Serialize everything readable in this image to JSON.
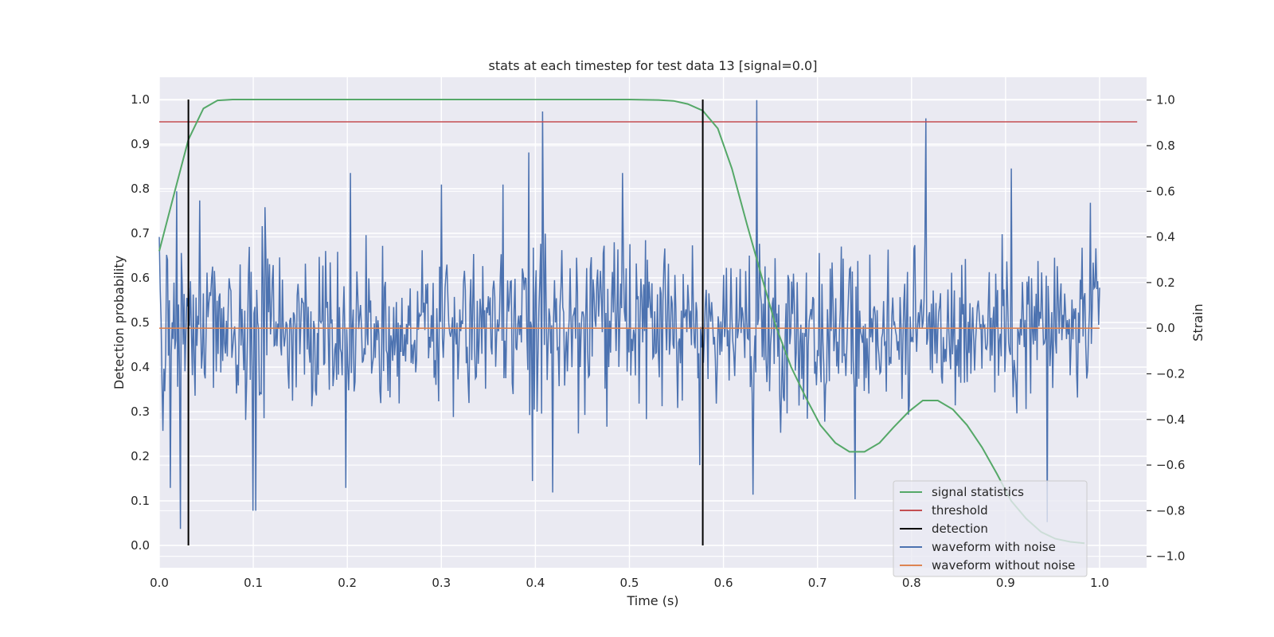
{
  "chart_data": {
    "type": "line",
    "title": "stats at each timestep for test data 13 [signal=0.0]",
    "xlabel": "Time (s)",
    "ylabel": "Detection probability",
    "ylabel_right": "Strain",
    "xlim": [
      0.0,
      1.05
    ],
    "ylim": [
      -0.05,
      1.05
    ],
    "ylim_right": [
      -1.05,
      1.1
    ],
    "x_ticks": [
      0.0,
      0.1,
      0.2,
      0.3,
      0.4,
      0.5,
      0.6,
      0.7,
      0.8,
      0.9,
      1.0
    ],
    "x_tick_labels": [
      "0.0",
      "0.1",
      "0.2",
      "0.3",
      "0.4",
      "0.5",
      "0.6",
      "0.7",
      "0.8",
      "0.9",
      "1.0"
    ],
    "y_ticks": [
      0.0,
      0.1,
      0.2,
      0.3,
      0.4,
      0.5,
      0.6,
      0.7,
      0.8,
      0.9,
      1.0
    ],
    "y_tick_labels": [
      "0.0",
      "0.1",
      "0.2",
      "0.3",
      "0.4",
      "0.5",
      "0.6",
      "0.7",
      "0.8",
      "0.9",
      "1.0"
    ],
    "y_right_ticks": [
      -1.0,
      -0.8,
      -0.6,
      -0.4,
      -0.2,
      0.0,
      0.2,
      0.4,
      0.6,
      0.8,
      1.0
    ],
    "y_right_tick_labels": [
      "−1.0",
      "−0.8",
      "−0.6",
      "−0.4",
      "−0.2",
      "0.0",
      "0.2",
      "0.4",
      "0.6",
      "0.8",
      "1.0"
    ],
    "grid": true,
    "legend_position": "lower-right",
    "series": [
      {
        "name": "signal statistics",
        "axis": "left",
        "color": "#55a868",
        "x": [
          0.0,
          0.016,
          0.031,
          0.047,
          0.062,
          0.078,
          0.094,
          0.2,
          0.3,
          0.4,
          0.5,
          0.531,
          0.547,
          0.562,
          0.578,
          0.594,
          0.609,
          0.625,
          0.641,
          0.656,
          0.672,
          0.688,
          0.703,
          0.719,
          0.734,
          0.75,
          0.766,
          0.781,
          0.797,
          0.812,
          0.828,
          0.844,
          0.859,
          0.875,
          0.891,
          0.906,
          0.922,
          0.938,
          0.953,
          0.969,
          0.984
        ],
        "y": [
          0.66,
          0.79,
          0.91,
          0.98,
          0.998,
          1.0,
          1.0,
          1.0,
          1.0,
          1.0,
          1.0,
          0.999,
          0.997,
          0.99,
          0.975,
          0.935,
          0.845,
          0.72,
          0.6,
          0.49,
          0.4,
          0.33,
          0.27,
          0.23,
          0.21,
          0.21,
          0.23,
          0.265,
          0.3,
          0.325,
          0.325,
          0.305,
          0.27,
          0.22,
          0.16,
          0.1,
          0.06,
          0.03,
          0.015,
          0.008,
          0.005
        ]
      },
      {
        "name": "threshold",
        "axis": "left",
        "color": "#c44e52",
        "x": [
          0.0,
          1.04
        ],
        "y": [
          0.95,
          0.95
        ]
      },
      {
        "name": "detection",
        "axis": "left",
        "color": "#000000",
        "segments": [
          {
            "x": 0.031,
            "y0": 0.0,
            "y1": 1.0
          },
          {
            "x": 0.578,
            "y0": 0.0,
            "y1": 1.0
          }
        ]
      },
      {
        "name": "waveform with noise",
        "axis": "right",
        "color": "#4c72b0",
        "x_start": 0.0,
        "x_end": 1.0,
        "n_points": 1024,
        "spikes": [
          {
            "x": 0.0,
            "y": 0.4
          },
          {
            "x": 0.004,
            "y": -0.45
          },
          {
            "x": 0.009,
            "y": 0.3
          },
          {
            "x": 0.012,
            "y": -0.7
          },
          {
            "x": 0.016,
            "y": 0.2
          },
          {
            "x": 0.019,
            "y": 0.6
          },
          {
            "x": 0.022,
            "y": -0.88
          },
          {
            "x": 0.026,
            "y": 0.15
          },
          {
            "x": 0.043,
            "y": 0.56
          },
          {
            "x": 0.1,
            "y": -0.8
          },
          {
            "x": 0.103,
            "y": -0.8
          },
          {
            "x": 0.112,
            "y": 0.53
          },
          {
            "x": 0.198,
            "y": -0.7
          },
          {
            "x": 0.203,
            "y": 0.68
          },
          {
            "x": 0.3,
            "y": 0.63
          },
          {
            "x": 0.366,
            "y": 0.63
          },
          {
            "x": 0.393,
            "y": 0.77
          },
          {
            "x": 0.397,
            "y": -0.67
          },
          {
            "x": 0.408,
            "y": 0.95
          },
          {
            "x": 0.418,
            "y": -0.72
          },
          {
            "x": 0.493,
            "y": 0.68
          },
          {
            "x": 0.575,
            "y": -0.6
          },
          {
            "x": 0.635,
            "y": 1.0
          },
          {
            "x": 0.631,
            "y": -0.73
          },
          {
            "x": 0.74,
            "y": -0.75
          },
          {
            "x": 0.815,
            "y": 0.92
          },
          {
            "x": 0.906,
            "y": 0.7
          },
          {
            "x": 0.944,
            "y": -0.85
          },
          {
            "x": 0.99,
            "y": 0.55
          }
        ]
      },
      {
        "name": "waveform without noise",
        "axis": "right",
        "color": "#dd8452",
        "x": [
          0.0,
          1.0
        ],
        "y": [
          0.0,
          0.0
        ]
      }
    ]
  }
}
